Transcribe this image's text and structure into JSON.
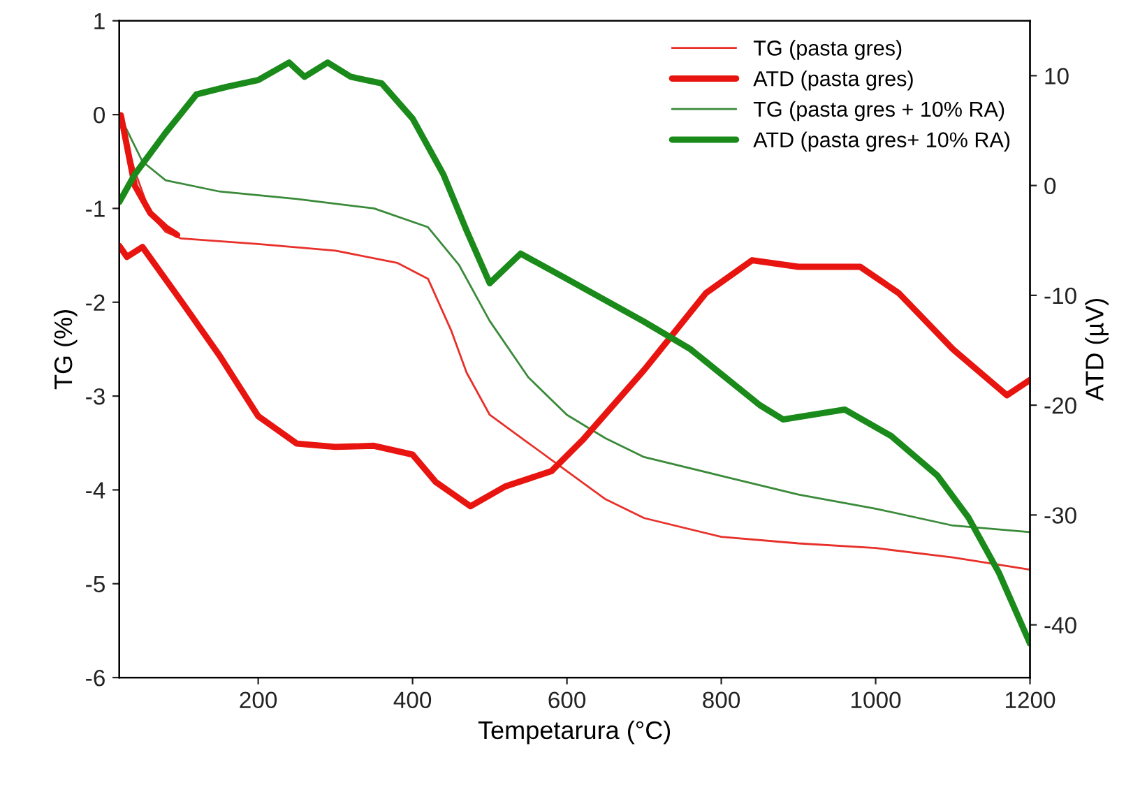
{
  "chart_data": {
    "type": "line",
    "xlabel": "Tempetarura (°C)",
    "ylabel": "TG (%)",
    "y2label": "ATD (µV)",
    "xlim": [
      20,
      1200
    ],
    "xticks": [
      200,
      400,
      600,
      800,
      1000,
      1200
    ],
    "ylim": [
      -6,
      1
    ],
    "yticks": [
      -6,
      -5,
      -4,
      -3,
      -2,
      -1,
      0,
      1
    ],
    "y2lim": [
      -44.8,
      15
    ],
    "y2ticks": [
      -40,
      -30,
      -20,
      -10,
      0,
      10
    ],
    "legend": "top right",
    "grid": false,
    "marker": "none",
    "line_style": "solid",
    "series": [
      {
        "name": "TG (pasta gres)",
        "color": "#e8302a",
        "x": [
          20,
          40,
          60,
          80,
          100,
          200,
          300,
          380,
          420,
          450,
          470,
          500,
          550,
          600,
          650,
          700,
          800,
          900,
          1000,
          1100,
          1200
        ],
        "values": [
          0,
          -0.6,
          -1.05,
          -1.25,
          -1.32,
          -1.38,
          -1.45,
          -1.58,
          -1.75,
          -2.3,
          -2.75,
          -3.2,
          -3.5,
          -3.8,
          -4.1,
          -4.3,
          -4.5,
          -4.57,
          -4.62,
          -4.72,
          -4.85
        ]
      },
      {
        "name": "ATD (pasta gres)",
        "color": "#e8140f",
        "axis": "y2",
        "x": [
          22,
          40,
          60,
          80,
          95,
          null,
          20,
          30,
          50,
          100,
          150,
          200,
          250,
          300,
          350,
          400,
          430,
          475,
          520,
          580,
          620,
          700,
          780,
          840,
          900,
          980,
          1030,
          1100,
          1170,
          1200
        ],
        "values": [
          6.4,
          0,
          -2.5,
          -3.8,
          -4.5,
          null,
          -5.5,
          -6.5,
          -5.6,
          -10.5,
          -15.5,
          -21,
          -23.5,
          -23.8,
          -23.7,
          -24.5,
          -27,
          -29.2,
          -27.4,
          -26,
          -23.2,
          -16.8,
          -9.8,
          -6.8,
          -7.4,
          -7.4,
          -9.8,
          -14.9,
          -19.1,
          -17.7
        ]
      },
      {
        "name": "TG (pasta gres + 10% RA)",
        "color": "#3a8a3a",
        "x": [
          20,
          50,
          80,
          150,
          250,
          350,
          420,
          460,
          500,
          550,
          600,
          650,
          700,
          800,
          900,
          1000,
          1100,
          1200
        ],
        "values": [
          0,
          -0.5,
          -0.7,
          -0.82,
          -0.9,
          -1.0,
          -1.2,
          -1.6,
          -2.2,
          -2.8,
          -3.2,
          -3.45,
          -3.65,
          -3.85,
          -4.05,
          -4.2,
          -4.38,
          -4.45
        ]
      },
      {
        "name": "ATD (pasta gres+ 10% RA)",
        "color": "#1a8a1a",
        "axis": "y2",
        "x": [
          20,
          40,
          80,
          120,
          160,
          200,
          240,
          260,
          290,
          320,
          360,
          400,
          440,
          470,
          500,
          540,
          600,
          700,
          760,
          850,
          880,
          960,
          1020,
          1080,
          1120,
          1160,
          1200
        ],
        "values": [
          -1.5,
          1,
          4.8,
          8.3,
          9,
          9.6,
          11.2,
          9.9,
          11.2,
          9.9,
          9.3,
          6.1,
          1,
          -4.1,
          -8.9,
          -6.2,
          -8.5,
          -12.4,
          -14.9,
          -20,
          -21.3,
          -20.4,
          -22.8,
          -26.4,
          -30.2,
          -35.3,
          -41.7
        ]
      }
    ]
  }
}
